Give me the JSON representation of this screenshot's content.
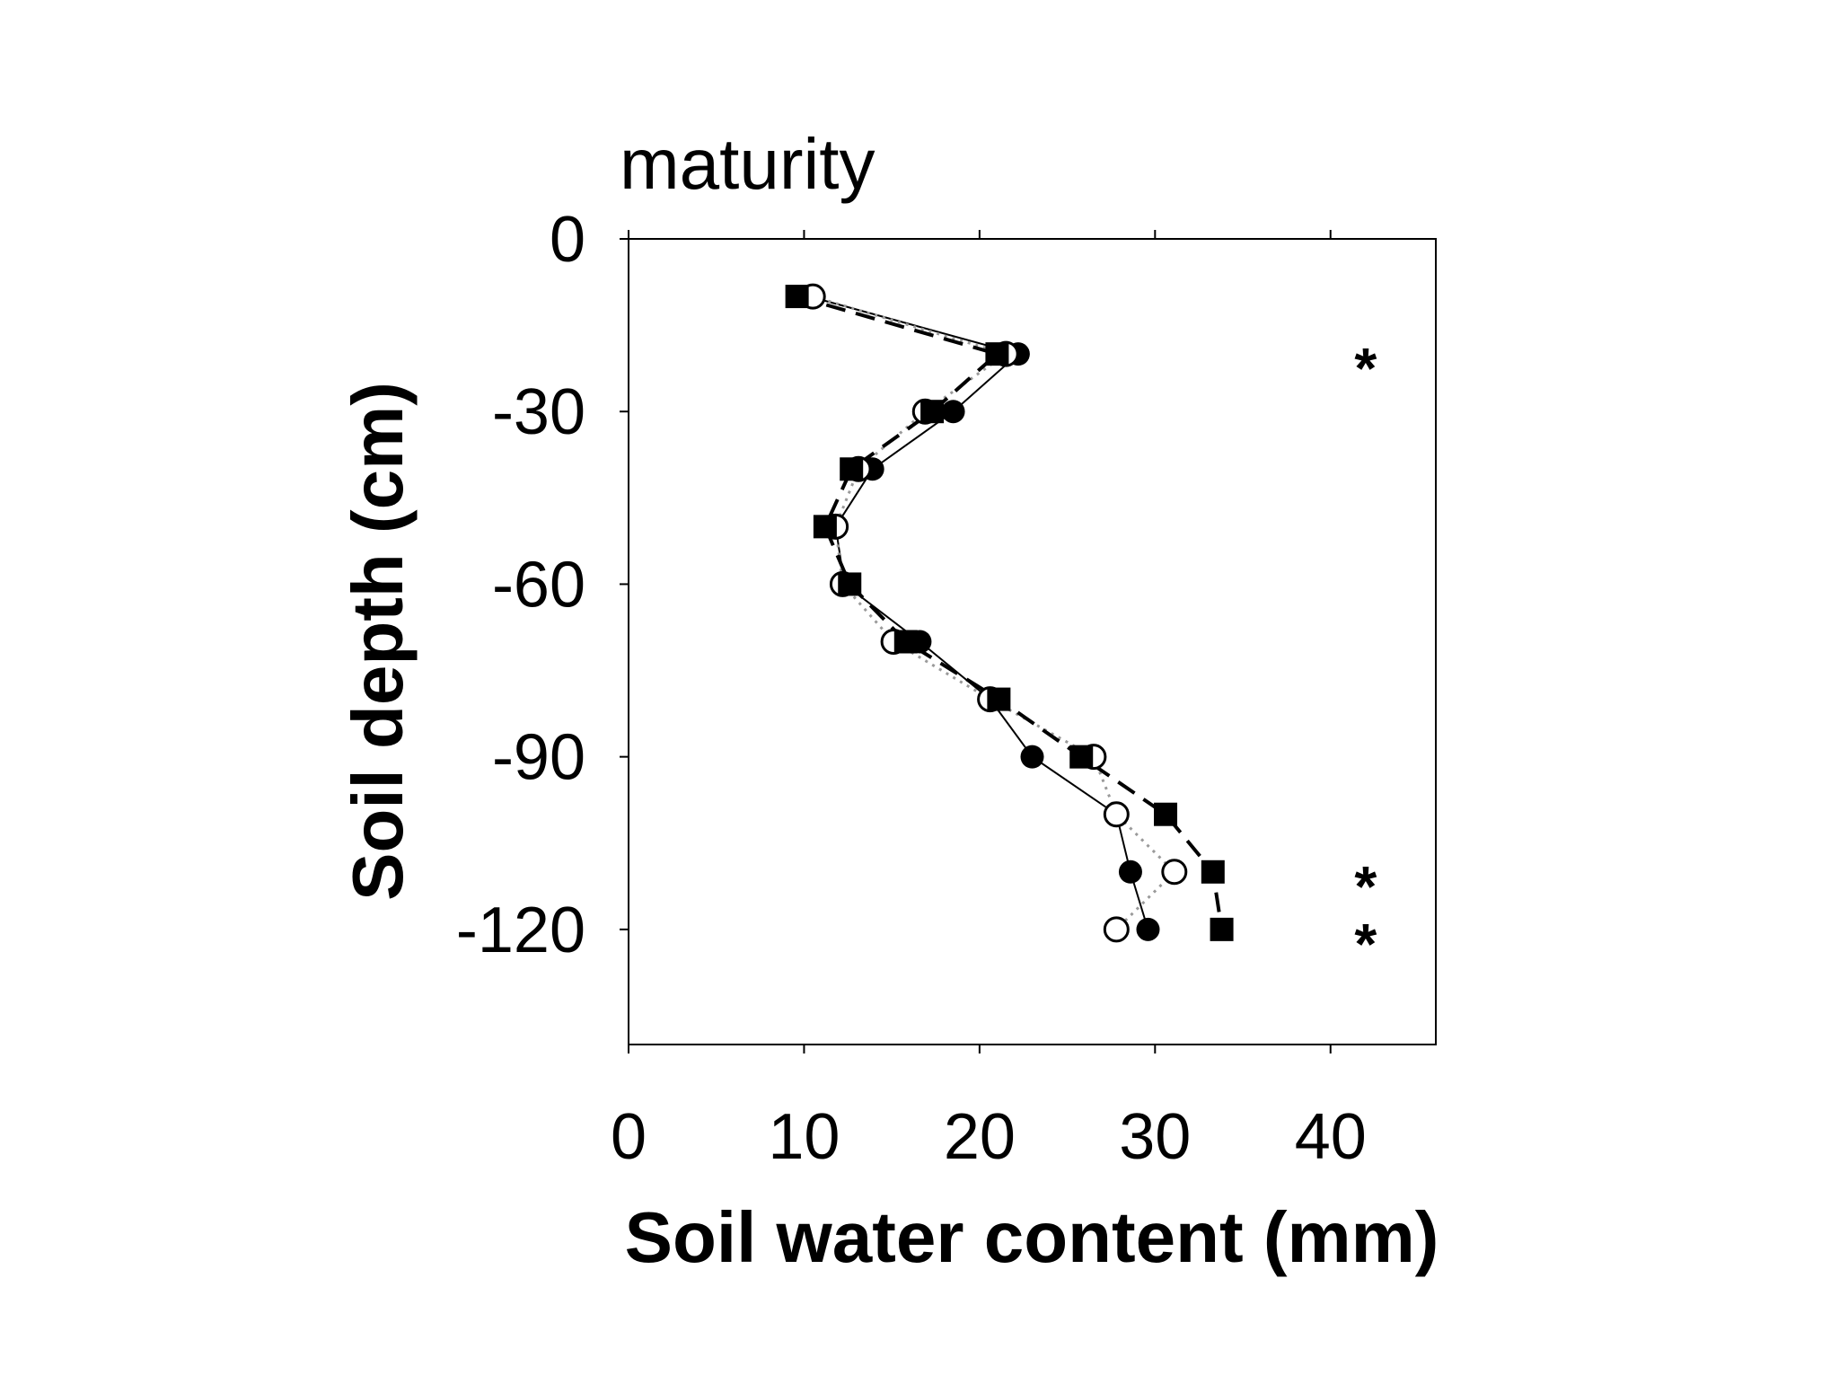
{
  "chart_data": {
    "type": "line",
    "title": "maturity",
    "xlabel": "Soil water content (mm)",
    "ylabel": "Soil depth (cm)",
    "xlim": [
      0,
      46
    ],
    "ylim": [
      -140,
      0
    ],
    "x_ticks": [
      0,
      10,
      20,
      30,
      40
    ],
    "y_ticks": [
      0,
      -30,
      -60,
      -90,
      -120
    ],
    "x_tick_labels": [
      "0",
      "10",
      "20",
      "30",
      "40"
    ],
    "y_tick_labels": [
      "0",
      "-30",
      "-60",
      "-90",
      "-120"
    ],
    "grid": false,
    "legend": "none",
    "series": [
      {
        "marker": "filled-circle",
        "line": "solid",
        "color": "#000000",
        "points": [
          {
            "x": 10.3,
            "y": -10
          },
          {
            "x": 22.2,
            "y": -20
          },
          {
            "x": 18.5,
            "y": -30
          },
          {
            "x": 13.9,
            "y": -40
          },
          {
            "x": 11.8,
            "y": -50
          },
          {
            "x": 12.3,
            "y": -60
          },
          {
            "x": 16.6,
            "y": -70
          },
          {
            "x": 20.6,
            "y": -80
          },
          {
            "x": 23.0,
            "y": -90
          },
          {
            "x": 27.8,
            "y": -100
          },
          {
            "x": 28.6,
            "y": -110
          },
          {
            "x": 29.6,
            "y": -120
          }
        ]
      },
      {
        "marker": "open-circle",
        "line": "dotted",
        "color": "#000000",
        "points": [
          {
            "x": 10.5,
            "y": -10
          },
          {
            "x": 21.5,
            "y": -20
          },
          {
            "x": 16.9,
            "y": -30
          },
          {
            "x": 13.1,
            "y": -40
          },
          {
            "x": 11.8,
            "y": -50
          },
          {
            "x": 12.2,
            "y": -60
          },
          {
            "x": 15.1,
            "y": -70
          },
          {
            "x": 20.6,
            "y": -80
          },
          {
            "x": 26.5,
            "y": -90
          },
          {
            "x": 27.8,
            "y": -100
          },
          {
            "x": 31.1,
            "y": -110
          },
          {
            "x": 27.8,
            "y": -120
          }
        ]
      },
      {
        "marker": "filled-square",
        "line": "dashed",
        "color": "#000000",
        "points": [
          {
            "x": 9.6,
            "y": -10
          },
          {
            "x": 21.0,
            "y": -20
          },
          {
            "x": 17.3,
            "y": -30
          },
          {
            "x": 12.7,
            "y": -40
          },
          {
            "x": 11.2,
            "y": -50
          },
          {
            "x": 12.6,
            "y": -60
          },
          {
            "x": 15.8,
            "y": -70
          },
          {
            "x": 21.1,
            "y": -80
          },
          {
            "x": 25.8,
            "y": -90
          },
          {
            "x": 30.6,
            "y": -100
          },
          {
            "x": 33.3,
            "y": -110
          },
          {
            "x": 33.8,
            "y": -120
          }
        ]
      }
    ],
    "annotations": [
      {
        "text": "*",
        "x": 42,
        "y": -20
      },
      {
        "text": "*",
        "x": 42,
        "y": -110
      },
      {
        "text": "*",
        "x": 42,
        "y": -120
      }
    ]
  }
}
